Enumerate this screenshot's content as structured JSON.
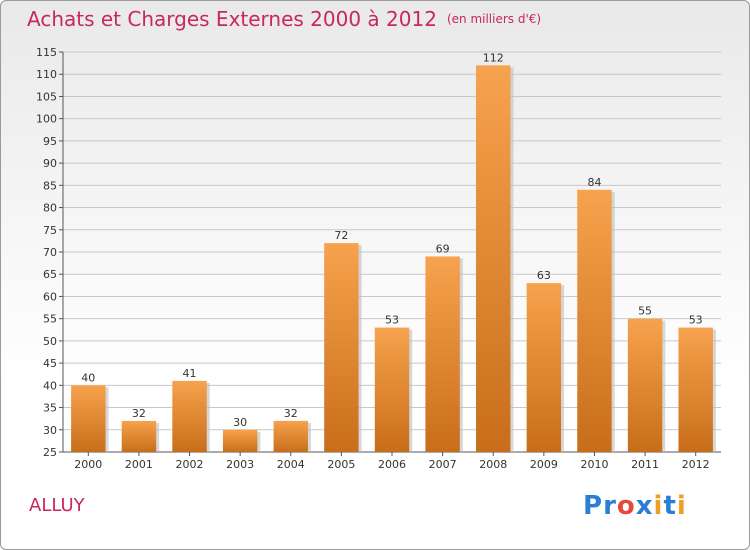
{
  "header": {
    "title": "Achats et Charges Externes 2000 à 2012",
    "subtitle": "(en milliers d'€)"
  },
  "footer": {
    "commune": "ALLUY",
    "logo_letters": [
      "P",
      "r",
      "o",
      "x",
      "i",
      "t",
      "i"
    ],
    "logo_colors": [
      "#2a7fd4",
      "#2a7fd4",
      "#e8483c",
      "#2a7fd4",
      "#f0a020",
      "#2a7fd4",
      "#f0a020"
    ]
  },
  "colors": {
    "accent": "#c8285a",
    "bar_light": "#f7a24e",
    "bar_dark": "#c86e1a",
    "grid": "#c8c8c8"
  },
  "chart_data": {
    "type": "bar",
    "title": "Achats et Charges Externes 2000 à 2012",
    "subtitle": "(en milliers d'€)",
    "categories": [
      "2000",
      "2001",
      "2002",
      "2003",
      "2004",
      "2005",
      "2006",
      "2007",
      "2008",
      "2009",
      "2010",
      "2011",
      "2012"
    ],
    "values": [
      40,
      32,
      41,
      30,
      32,
      72,
      53,
      69,
      112,
      63,
      84,
      55,
      53
    ],
    "ylim": [
      25,
      115
    ],
    "yticks": [
      25,
      30,
      35,
      40,
      45,
      50,
      55,
      60,
      65,
      70,
      75,
      80,
      85,
      90,
      95,
      100,
      105,
      110,
      115
    ],
    "grid": true,
    "data_labels": true
  }
}
